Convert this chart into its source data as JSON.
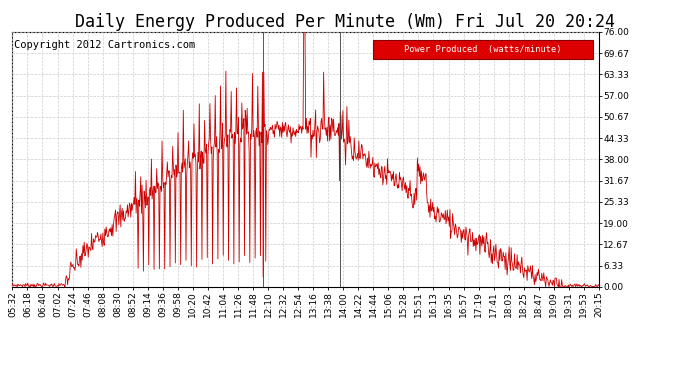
{
  "title": "Daily Energy Produced Per Minute (Wm) Fri Jul 20 20:24",
  "copyright": "Copyright 2012 Cartronics.com",
  "legend_label": "Power Produced  (watts/minute)",
  "legend_bg": "#dd0000",
  "legend_text_color": "#ffffff",
  "line_color": "#cc0000",
  "bg_color": "#ffffff",
  "grid_color": "#cccccc",
  "ylim": [
    0,
    76.0
  ],
  "yticks": [
    0.0,
    6.33,
    12.67,
    19.0,
    25.33,
    31.67,
    38.0,
    44.33,
    50.67,
    57.0,
    63.33,
    69.67,
    76.0
  ],
  "xtick_labels": [
    "05:32",
    "06:18",
    "06:40",
    "07:02",
    "07:24",
    "07:46",
    "08:08",
    "08:30",
    "08:52",
    "09:14",
    "09:36",
    "09:58",
    "10:20",
    "10:42",
    "11:04",
    "11:26",
    "11:48",
    "12:10",
    "12:32",
    "12:54",
    "13:16",
    "13:38",
    "14:00",
    "14:22",
    "14:44",
    "15:06",
    "15:28",
    "15:51",
    "16:13",
    "16:35",
    "16:57",
    "17:19",
    "17:41",
    "18:03",
    "18:25",
    "18:47",
    "19:09",
    "19:31",
    "19:53",
    "20:15"
  ],
  "title_fontsize": 12,
  "copyright_fontsize": 7.5,
  "tick_fontsize": 6.5
}
